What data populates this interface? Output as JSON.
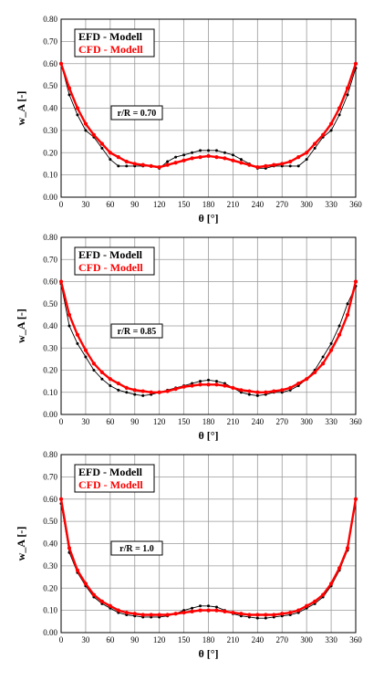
{
  "chart_data": [
    {
      "type": "line",
      "xlabel": "θ [°]",
      "ylabel": "w_A [-]",
      "xlim": [
        0,
        360
      ],
      "ylim": [
        0,
        0.8
      ],
      "xticks": [
        0,
        30,
        60,
        90,
        120,
        150,
        180,
        210,
        240,
        270,
        300,
        330,
        360
      ],
      "yticks": [
        "0.00",
        "0.10",
        "0.20",
        "0.30",
        "0.40",
        "0.50",
        "0.60",
        "0.70",
        "0.80"
      ],
      "grid": true,
      "legend_position": "top-left",
      "annotation": "r/R = 0.70",
      "series": [
        {
          "name": "EFD - Modell",
          "color": "#000000",
          "x": [
            0,
            10,
            20,
            30,
            40,
            50,
            60,
            70,
            80,
            90,
            100,
            110,
            120,
            130,
            140,
            150,
            160,
            170,
            180,
            190,
            200,
            210,
            220,
            230,
            240,
            250,
            260,
            270,
            280,
            290,
            300,
            310,
            320,
            330,
            340,
            350,
            360
          ],
          "y": [
            0.6,
            0.46,
            0.37,
            0.3,
            0.27,
            0.22,
            0.17,
            0.14,
            0.14,
            0.14,
            0.14,
            0.14,
            0.13,
            0.16,
            0.18,
            0.19,
            0.2,
            0.21,
            0.21,
            0.21,
            0.2,
            0.19,
            0.17,
            0.15,
            0.13,
            0.13,
            0.14,
            0.14,
            0.14,
            0.14,
            0.17,
            0.22,
            0.27,
            0.3,
            0.37,
            0.46,
            0.58
          ]
        },
        {
          "name": "CFD - Modell",
          "color": "#ff0000",
          "x": [
            0,
            10,
            20,
            30,
            40,
            50,
            60,
            70,
            80,
            90,
            100,
            110,
            120,
            130,
            140,
            150,
            160,
            170,
            180,
            190,
            200,
            210,
            220,
            230,
            240,
            250,
            260,
            270,
            280,
            290,
            300,
            310,
            320,
            330,
            340,
            350,
            360
          ],
          "y": [
            0.6,
            0.49,
            0.4,
            0.33,
            0.28,
            0.24,
            0.2,
            0.18,
            0.16,
            0.15,
            0.145,
            0.14,
            0.135,
            0.145,
            0.155,
            0.165,
            0.175,
            0.18,
            0.185,
            0.18,
            0.175,
            0.165,
            0.155,
            0.145,
            0.135,
            0.14,
            0.145,
            0.15,
            0.16,
            0.18,
            0.2,
            0.24,
            0.28,
            0.33,
            0.4,
            0.49,
            0.6
          ]
        }
      ]
    },
    {
      "type": "line",
      "xlabel": "θ [°]",
      "ylabel": "w_A [-]",
      "xlim": [
        0,
        360
      ],
      "ylim": [
        0,
        0.8
      ],
      "xticks": [
        0,
        30,
        60,
        90,
        120,
        150,
        180,
        210,
        240,
        270,
        300,
        330,
        360
      ],
      "yticks": [
        "0.00",
        "0.10",
        "0.20",
        "0.30",
        "0.40",
        "0.50",
        "0.60",
        "0.70",
        "0.80"
      ],
      "grid": true,
      "legend_position": "top-left",
      "annotation": "r/R = 0.85",
      "series": [
        {
          "name": "EFD - Modell",
          "color": "#000000",
          "x": [
            0,
            10,
            20,
            30,
            40,
            50,
            60,
            70,
            80,
            90,
            100,
            110,
            120,
            130,
            140,
            150,
            160,
            170,
            180,
            190,
            200,
            210,
            220,
            230,
            240,
            250,
            260,
            270,
            280,
            290,
            300,
            310,
            320,
            330,
            340,
            350,
            360
          ],
          "y": [
            0.59,
            0.4,
            0.32,
            0.26,
            0.2,
            0.16,
            0.13,
            0.11,
            0.1,
            0.09,
            0.085,
            0.09,
            0.1,
            0.11,
            0.12,
            0.13,
            0.14,
            0.15,
            0.155,
            0.15,
            0.14,
            0.12,
            0.1,
            0.09,
            0.085,
            0.09,
            0.1,
            0.1,
            0.11,
            0.13,
            0.16,
            0.2,
            0.26,
            0.32,
            0.4,
            0.5,
            0.58
          ]
        },
        {
          "name": "CFD - Modell",
          "color": "#ff0000",
          "x": [
            0,
            10,
            20,
            30,
            40,
            50,
            60,
            70,
            80,
            90,
            100,
            110,
            120,
            130,
            140,
            150,
            160,
            170,
            180,
            190,
            200,
            210,
            220,
            230,
            240,
            250,
            260,
            270,
            280,
            290,
            300,
            310,
            320,
            330,
            340,
            350,
            360
          ],
          "y": [
            0.6,
            0.45,
            0.36,
            0.29,
            0.23,
            0.19,
            0.16,
            0.14,
            0.12,
            0.11,
            0.105,
            0.1,
            0.1,
            0.105,
            0.115,
            0.125,
            0.13,
            0.135,
            0.135,
            0.135,
            0.13,
            0.12,
            0.11,
            0.105,
            0.1,
            0.1,
            0.105,
            0.11,
            0.12,
            0.14,
            0.16,
            0.19,
            0.23,
            0.29,
            0.36,
            0.45,
            0.6
          ]
        }
      ]
    },
    {
      "type": "line",
      "xlabel": "θ [°]",
      "ylabel": "w_A [-]",
      "xlim": [
        0,
        360
      ],
      "ylim": [
        0,
        0.8
      ],
      "xticks": [
        0,
        30,
        60,
        90,
        120,
        150,
        180,
        210,
        240,
        270,
        300,
        330,
        360
      ],
      "yticks": [
        "0.00",
        "0.10",
        "0.20",
        "0.30",
        "0.40",
        "0.50",
        "0.60",
        "0.70",
        "0.80"
      ],
      "grid": true,
      "legend_position": "top-left",
      "annotation": "r/R = 1.0",
      "series": [
        {
          "name": "EFD - Modell",
          "color": "#000000",
          "x": [
            0,
            10,
            20,
            30,
            40,
            50,
            60,
            70,
            80,
            90,
            100,
            110,
            120,
            130,
            140,
            150,
            160,
            170,
            180,
            190,
            200,
            210,
            220,
            230,
            240,
            250,
            260,
            270,
            280,
            290,
            300,
            310,
            320,
            330,
            340,
            350,
            360
          ],
          "y": [
            0.58,
            0.36,
            0.27,
            0.21,
            0.16,
            0.13,
            0.11,
            0.09,
            0.08,
            0.075,
            0.07,
            0.07,
            0.07,
            0.075,
            0.085,
            0.1,
            0.11,
            0.12,
            0.12,
            0.115,
            0.1,
            0.085,
            0.075,
            0.07,
            0.065,
            0.065,
            0.07,
            0.075,
            0.08,
            0.09,
            0.11,
            0.13,
            0.16,
            0.21,
            0.28,
            0.37,
            0.6
          ]
        },
        {
          "name": "CFD - Modell",
          "color": "#ff0000",
          "x": [
            0,
            10,
            20,
            30,
            40,
            50,
            60,
            70,
            80,
            90,
            100,
            110,
            120,
            130,
            140,
            150,
            160,
            170,
            180,
            190,
            200,
            210,
            220,
            230,
            240,
            250,
            260,
            270,
            280,
            290,
            300,
            310,
            320,
            330,
            340,
            350,
            360
          ],
          "y": [
            0.6,
            0.38,
            0.28,
            0.22,
            0.17,
            0.14,
            0.12,
            0.1,
            0.09,
            0.085,
            0.08,
            0.08,
            0.08,
            0.08,
            0.085,
            0.09,
            0.095,
            0.1,
            0.1,
            0.1,
            0.095,
            0.09,
            0.085,
            0.08,
            0.08,
            0.08,
            0.08,
            0.085,
            0.09,
            0.1,
            0.12,
            0.14,
            0.17,
            0.22,
            0.29,
            0.38,
            0.6
          ]
        }
      ]
    }
  ]
}
